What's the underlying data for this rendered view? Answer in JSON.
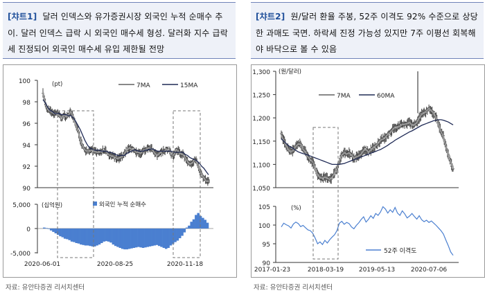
{
  "left": {
    "tag": "[챠트1]",
    "caption": "달러 인덱스와 유가증권시장 외국인 누적 순매수 추이. 달러 인덱스 급락 시 외국인 매수세 형성. 달러화 지수 급락세 진정되어 외국인 매수세 유입 제한될 전망",
    "source": "자료: 유안타증권 리서치센터"
  },
  "right": {
    "tag": "[챠트2]",
    "caption": "원/달러 환율 주봉, 52주 이격도 92% 수준으로 상당한 과매도 국면. 하락세 진정 가능성 있지만 7주 이평선 회복해야 바닥으로 볼 수 있음",
    "source": "자료: 유안타증권 리서치센터"
  },
  "chart_data": [
    {
      "type": "line",
      "unit_label": "(pt)",
      "ylim": [
        90,
        100
      ],
      "yticks": [
        90,
        92,
        94,
        96,
        98,
        100
      ],
      "legend": [
        "7MA",
        "15MA"
      ],
      "series": [
        {
          "name": "7MA",
          "values": [
            98.9,
            97.8,
            97.3,
            97.2,
            97.0,
            96.9,
            96.9,
            96.7,
            96.5,
            96.8,
            96.6,
            96.8,
            97.1,
            96.5,
            95.9,
            95.3,
            94.5,
            93.9,
            93.5,
            93.4,
            93.4,
            93.5,
            93.4,
            93.3,
            93.3,
            93.4,
            93.5,
            93.4,
            93.1,
            93.0,
            92.9,
            92.8,
            92.7,
            92.8,
            92.9,
            93.2,
            93.5,
            93.7,
            93.6,
            93.5,
            93.3,
            93.3,
            93.2,
            93.5,
            93.5,
            93.7,
            93.7,
            93.5,
            93.2,
            93.0,
            93.2,
            93.4,
            93.4,
            93.6,
            93.5,
            93.1,
            93.0,
            93.5,
            93.4,
            93.2,
            93.1,
            92.8,
            92.4,
            92.2,
            92.3,
            92.6,
            92.4,
            91.7,
            91.2,
            90.9,
            90.6,
            90.6
          ]
        },
        {
          "name": "15MA",
          "values": [
            98.2,
            97.9,
            97.5,
            97.2,
            97.1,
            96.9,
            96.9,
            96.9,
            96.8,
            96.8,
            96.8,
            96.7,
            96.7,
            96.5,
            96.2,
            95.8,
            95.4,
            94.9,
            94.4,
            94.0,
            93.7,
            93.6,
            93.5,
            93.5,
            93.5,
            93.4,
            93.4,
            93.4,
            93.3,
            93.3,
            93.2,
            93.1,
            93.0,
            93.0,
            93.0,
            93.0,
            93.2,
            93.3,
            93.4,
            93.5,
            93.5,
            93.4,
            93.4,
            93.4,
            93.5,
            93.5,
            93.6,
            93.6,
            93.5,
            93.4,
            93.4,
            93.4,
            93.4,
            93.4,
            93.4,
            93.4,
            93.3,
            93.3,
            93.3,
            93.3,
            93.3,
            93.1,
            93.0,
            92.8,
            92.7,
            92.6,
            92.5,
            92.3,
            92.0,
            91.8,
            91.5,
            91.2
          ]
        }
      ],
      "xlabels": [
        "2020-06-01",
        "2020-08-25",
        "2020-11-18"
      ]
    },
    {
      "type": "bar",
      "unit_label": "(십억원)",
      "ylim": [
        -5000,
        5000
      ],
      "yticks": [
        "5,000",
        "0",
        "-5,000"
      ],
      "legend": [
        "외국인 누적 순매수"
      ],
      "series": [
        {
          "name": "외국인 누적 순매수",
          "values": [
            200,
            100,
            -100,
            -400,
            -700,
            -1000,
            -1300,
            -1600,
            -1800,
            -2100,
            -2200,
            -2400,
            -2700,
            -2800,
            -3000,
            -3100,
            -3300,
            -3400,
            -3500,
            -3500,
            -3600,
            -3700,
            -3700,
            -3500,
            -3300,
            -3000,
            -2700,
            -2600,
            -2700,
            -2900,
            -3300,
            -3600,
            -3800,
            -4000,
            -4200,
            -4300,
            -4300,
            -4200,
            -4100,
            -4000,
            -3900,
            -3800,
            -3900,
            -4000,
            -3900,
            -3800,
            -3700,
            -3600,
            -3500,
            -3400,
            -3600,
            -3800,
            -4000,
            -4200,
            -4000,
            -3500,
            -3200,
            -2800,
            -2500,
            -2000,
            -1500,
            -800,
            200,
            600,
            1400,
            1900,
            2800,
            3200,
            2600,
            2200,
            1800,
            1200
          ]
        }
      ]
    },
    {
      "type": "line",
      "unit_label": "(원/달러)",
      "ylim": [
        1050,
        1300
      ],
      "yticks": [
        "1,050",
        "1,100",
        "1,150",
        "1,200",
        "1,250",
        "1,300"
      ],
      "legend": [
        "7MA",
        "60MA"
      ],
      "series": [
        {
          "name": "7MA",
          "values": [
            1163,
            1151,
            1141,
            1131,
            1128,
            1130,
            1139,
            1144,
            1143,
            1132,
            1127,
            1116,
            1110,
            1105,
            1092,
            1077,
            1072,
            1070,
            1073,
            1070,
            1068,
            1072,
            1081,
            1090,
            1108,
            1120,
            1125,
            1122,
            1125,
            1120,
            1113,
            1116,
            1118,
            1122,
            1130,
            1132,
            1126,
            1131,
            1136,
            1140,
            1145,
            1152,
            1154,
            1158,
            1165,
            1168,
            1175,
            1180,
            1180,
            1182,
            1186,
            1186,
            1188,
            1190,
            1185,
            1185,
            1190,
            1200,
            1208,
            1210,
            1215,
            1220,
            1215,
            1210,
            1200,
            1185,
            1170,
            1160,
            1140,
            1120,
            1105,
            1090
          ]
        },
        {
          "name": "60MA",
          "values": [
            1155,
            1150,
            1145,
            1140,
            1137,
            1134,
            1130,
            1127,
            1125,
            1123,
            1122,
            1120,
            1118,
            1116,
            1114,
            1112,
            1110,
            1108,
            1106,
            1104,
            1102,
            1100,
            1100,
            1100,
            1100,
            1101,
            1102,
            1104,
            1106,
            1108,
            1110,
            1112,
            1114,
            1116,
            1118,
            1120,
            1122,
            1124,
            1126,
            1128,
            1130,
            1132,
            1135,
            1138,
            1141,
            1145,
            1148,
            1152,
            1155,
            1158,
            1161,
            1164,
            1167,
            1170,
            1172,
            1175,
            1178,
            1181,
            1184,
            1186,
            1188,
            1190,
            1192,
            1194,
            1195,
            1196,
            1196,
            1195,
            1193,
            1191,
            1188,
            1185
          ]
        }
      ]
    },
    {
      "type": "line",
      "unit_label": "(%)",
      "ylim": [
        90,
        105
      ],
      "yticks": [
        90,
        95,
        100,
        105
      ],
      "legend": [
        "52주 이격도"
      ],
      "series": [
        {
          "name": "52주 이격도",
          "values": [
            99.5,
            100.5,
            100.1,
            99.8,
            99.2,
            100.3,
            100.8,
            100.4,
            99.6,
            99.9,
            99.3,
            98.7,
            98.5,
            97.8,
            96.5,
            95.0,
            95.5,
            94.8,
            95.9,
            95.2,
            96.1,
            96.8,
            97.4,
            98.5,
            100.5,
            101.0,
            100.2,
            100.7,
            100.4,
            99.5,
            99.0,
            99.9,
            100.6,
            101.5,
            102.2,
            100.8,
            101.5,
            102.5,
            101.8,
            103.1,
            102.6,
            103.5,
            104.9,
            104.3,
            103.2,
            104.1,
            103.4,
            104.7,
            103.2,
            102.6,
            103.8,
            103.0,
            101.9,
            102.4,
            103.1,
            102.3,
            101.6,
            102.5,
            101.4,
            100.9,
            101.3,
            100.7,
            101.1,
            100.5,
            99.9,
            99.2,
            98.5,
            97.6,
            96.0,
            94.5,
            92.8,
            91.9
          ]
        }
      ],
      "xlabels": [
        "2017-01-23",
        "2018-03-19",
        "2019-05-13",
        "2020-07-06"
      ]
    }
  ]
}
